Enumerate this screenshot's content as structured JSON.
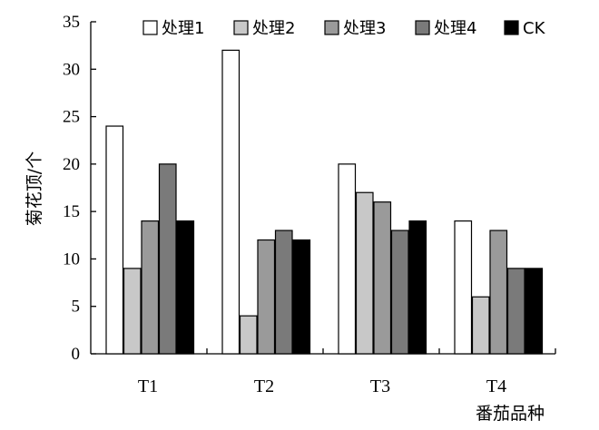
{
  "chart_data": {
    "type": "bar",
    "categories": [
      "T1",
      "T2",
      "T3",
      "T4"
    ],
    "series": [
      {
        "name": "处理1",
        "color": "#ffffff",
        "values": [
          24,
          32,
          20,
          14
        ]
      },
      {
        "name": "处理2",
        "color": "#c8c8c8",
        "values": [
          9,
          4,
          17,
          6
        ]
      },
      {
        "name": "处理3",
        "color": "#9a9a9a",
        "values": [
          14,
          12,
          16,
          13
        ]
      },
      {
        "name": "处理4",
        "color": "#7a7a7a",
        "values": [
          20,
          13,
          13,
          9
        ]
      },
      {
        "name": "CK",
        "color": "#000000",
        "values": [
          14,
          12,
          14,
          9
        ]
      }
    ],
    "title": "",
    "xlabel": "番茄品种",
    "ylabel": "菊花顶/个",
    "ylim": [
      0,
      35
    ],
    "yticks": [
      0,
      5,
      10,
      15,
      20,
      25,
      30,
      35
    ],
    "grid": false,
    "legend_position": "top-right"
  }
}
